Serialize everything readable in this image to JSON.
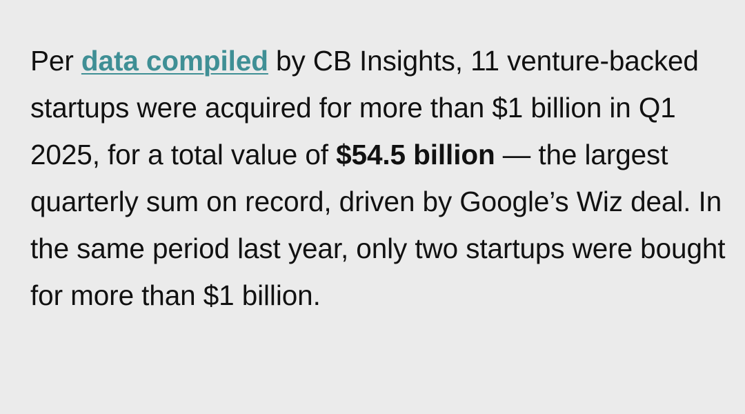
{
  "article": {
    "paragraph": {
      "text_before_link": "Per ",
      "link_text": "data compiled",
      "text_after_link": " by CB Insights, 11 venture-backed startups were acquired for more than $1 billion in Q1 2025, for a total value of ",
      "bold_text": "$54.5 billion",
      "text_after_bold": " — the largest quarterly sum on record, driven by Google’s Wiz deal. In the same period last year, only two startups were bought for more than $1 billion.",
      "link_color": "#3f8f95",
      "text_color": "#111111",
      "background_color": "#ebebeb"
    }
  }
}
